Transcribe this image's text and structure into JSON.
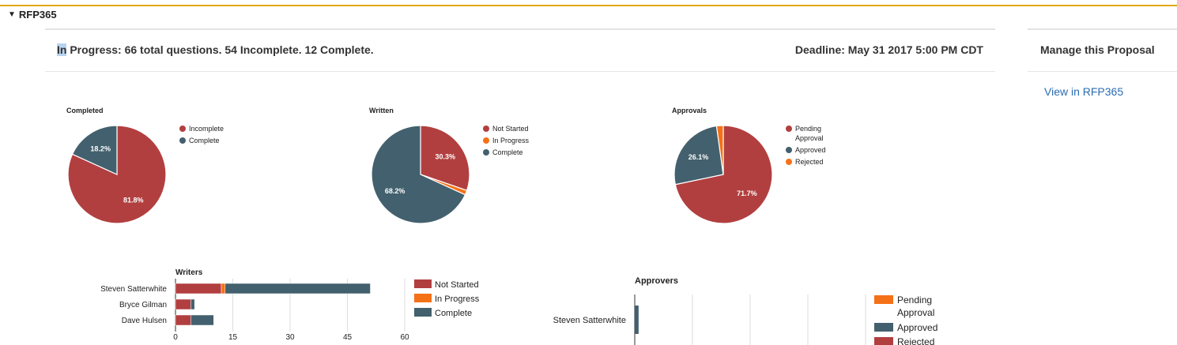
{
  "section": {
    "title": "RFP365"
  },
  "header": {
    "status_prefix": "In",
    "status_rest": " Progress: 66 total questions. 54 Incomplete. 12 Complete.",
    "deadline": "Deadline: May 31 2017 5:00 PM CDT"
  },
  "manage": {
    "title": "Manage this Proposal",
    "link": "View in RFP365"
  },
  "colors": {
    "red": "#b23f3f",
    "slate": "#43606e",
    "orange": "#f57117"
  },
  "chart_data": [
    {
      "type": "pie",
      "title": "Completed",
      "slices": [
        {
          "label": "Incomplete",
          "value": 81.8,
          "color": "#b23f3f",
          "text": "81.8%"
        },
        {
          "label": "Complete",
          "value": 18.2,
          "color": "#43606e",
          "text": "18.2%"
        }
      ]
    },
    {
      "type": "pie",
      "title": "Written",
      "slices": [
        {
          "label": "Not Started",
          "value": 30.3,
          "color": "#b23f3f",
          "text": "30.3%"
        },
        {
          "label": "In Progress",
          "value": 1.5,
          "color": "#f57117",
          "text": ""
        },
        {
          "label": "Complete",
          "value": 68.2,
          "color": "#43606e",
          "text": "68.2%"
        }
      ]
    },
    {
      "type": "pie",
      "title": "Approvals",
      "slices": [
        {
          "label": "Pending Approval",
          "value": 71.7,
          "color": "#b23f3f",
          "text": "71.7%"
        },
        {
          "label": "Approved",
          "value": 26.1,
          "color": "#43606e",
          "text": "26.1%"
        },
        {
          "label": "Rejected",
          "value": 2.2,
          "color": "#f57117",
          "text": ""
        }
      ],
      "legend_order": [
        0,
        1,
        2
      ]
    },
    {
      "type": "bar",
      "orientation": "horizontal",
      "stacked": true,
      "title": "Writers",
      "categories": [
        "Steven Satterwhite",
        "Bryce Gilman",
        "Dave Hulsen"
      ],
      "series": [
        {
          "name": "Not Started",
          "color": "#b23f3f",
          "values": [
            12,
            4,
            4
          ]
        },
        {
          "name": "In Progress",
          "color": "#f57117",
          "values": [
            1,
            0,
            0
          ]
        },
        {
          "name": "Complete",
          "color": "#43606e",
          "values": [
            38,
            1,
            6
          ]
        }
      ],
      "xticks": [
        "0",
        "15",
        "30",
        "45",
        "60"
      ],
      "xlim": [
        0,
        60
      ]
    },
    {
      "type": "bar",
      "orientation": "horizontal",
      "stacked": true,
      "title": "Approvers",
      "categories": [
        "Steven Satterwhite"
      ],
      "series": [
        {
          "name": "Pending Approval",
          "color": "#f57117",
          "values": [
            0
          ]
        },
        {
          "name": "Approved",
          "color": "#43606e",
          "values": [
            1
          ]
        },
        {
          "name": "Rejected",
          "color": "#b23f3f",
          "values": [
            0
          ]
        }
      ],
      "xlim": [
        0,
        60
      ]
    }
  ]
}
